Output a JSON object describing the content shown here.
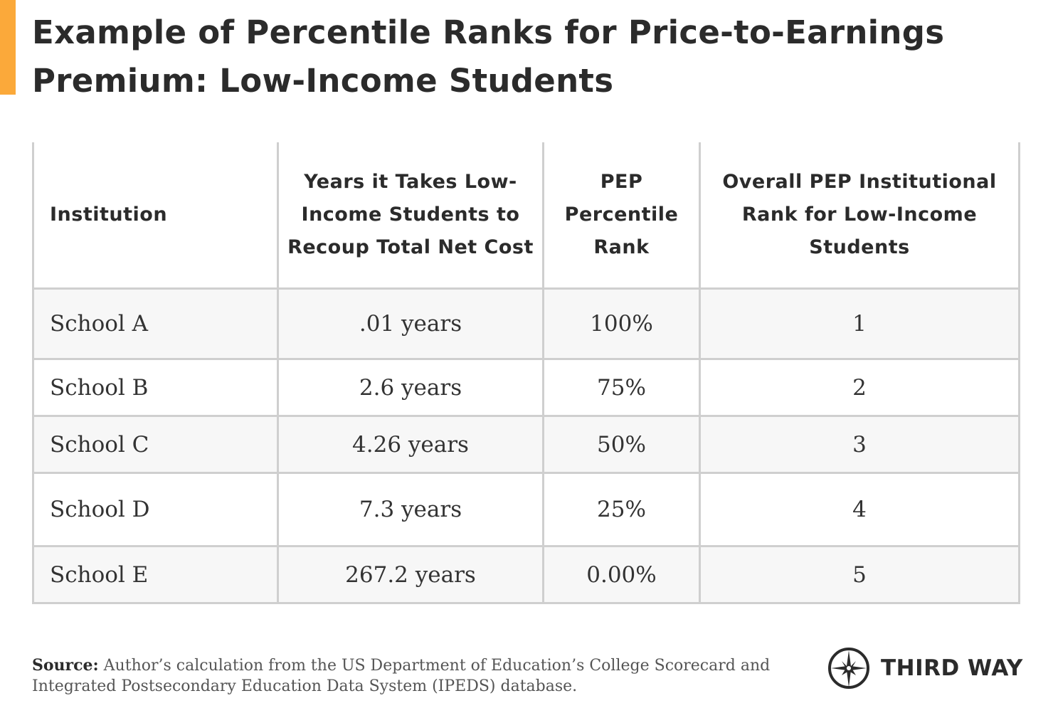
{
  "title": "Example of Percentile Ranks for Price-to-Earnings Premium: Low-Income Students",
  "colors": {
    "accent": "#fba93a",
    "row_shade": "#f7f7f7",
    "border": "#cfcfcf",
    "text": "#2b2b2b"
  },
  "table": {
    "headers": [
      "Institution",
      "Years it Takes Low-Income Students to Recoup Total Net Cost",
      "PEP Percentile Rank",
      "Overall PEP Institutional Rank for Low-Income Students"
    ],
    "rows": [
      [
        "School A",
        ".01 years",
        "100%",
        "1"
      ],
      [
        "School B",
        "2.6 years",
        "75%",
        "2"
      ],
      [
        "School C",
        "4.26 years",
        "50%",
        "3"
      ],
      [
        "School D",
        "7.3 years",
        "25%",
        "4"
      ],
      [
        "School E",
        "267.2 years",
        "0.00%",
        "5"
      ]
    ]
  },
  "source": {
    "label": "Source:",
    "text": " Author’s calculation from the US Department of Education’s College Scorecard and Integrated Postsecondary Education Data System (IPEDS) database."
  },
  "logo": {
    "icon": "compass-star-icon",
    "text": "THIRD WAY"
  }
}
